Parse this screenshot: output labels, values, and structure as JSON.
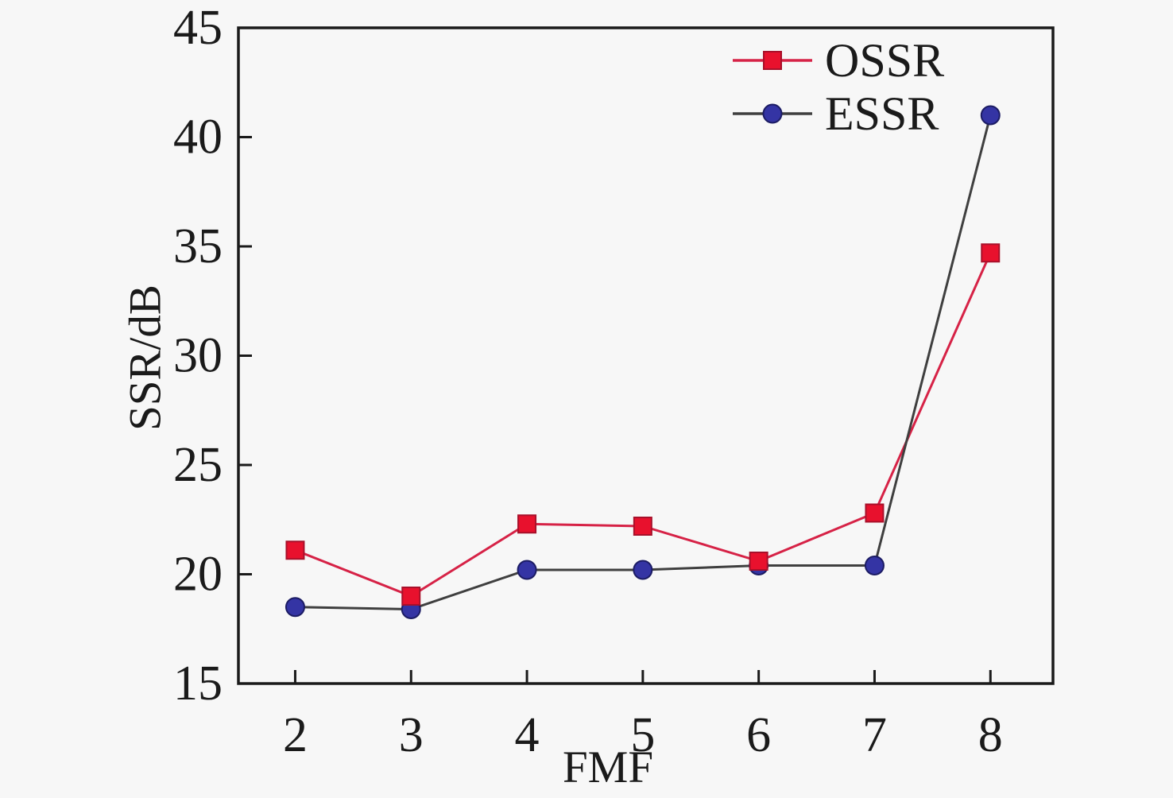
{
  "figure": {
    "background_color": "#f7f7f7",
    "frame_color": "#1a1a1a",
    "text_color": "#1a1a1a"
  },
  "chart_data": {
    "type": "line",
    "title": "",
    "xlabel": "FMF",
    "ylabel": "SSR/dB",
    "x": [
      2,
      3,
      4,
      5,
      6,
      7,
      8
    ],
    "xticks": [
      2,
      3,
      4,
      5,
      6,
      7,
      8
    ],
    "yticks": [
      15,
      20,
      25,
      30,
      35,
      40,
      45
    ],
    "xlim": [
      1.51,
      8.54
    ],
    "ylim": [
      15,
      45
    ],
    "grid": false,
    "legend": {
      "position": "top-right-inside",
      "entries": [
        "OSSR",
        "ESSR"
      ]
    },
    "series": [
      {
        "name": "OSSR",
        "marker": "square",
        "line_color": "#d62246",
        "marker_fill": "#e8112d",
        "marker_edge": "#a8102a",
        "values": [
          21.1,
          19.0,
          22.3,
          22.2,
          20.6,
          22.8,
          34.7
        ]
      },
      {
        "name": "ESSR",
        "marker": "circle",
        "line_color": "#3f3f3f",
        "marker_fill": "#3434a4",
        "marker_edge": "#1c1c64",
        "values": [
          18.5,
          18.4,
          20.2,
          20.2,
          20.4,
          20.4,
          41.0
        ]
      }
    ]
  }
}
